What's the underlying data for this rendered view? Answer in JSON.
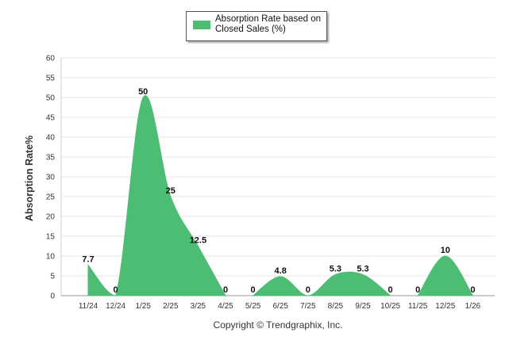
{
  "chart_data": {
    "type": "area",
    "title": "",
    "ylabel": "Absorption Rate%",
    "xlabel": "",
    "ylim": [
      0,
      60
    ],
    "ytick_step": 5,
    "grid": true,
    "legend_position": "top-center",
    "categories": [
      "11/24",
      "12/24",
      "1/25",
      "2/25",
      "3/25",
      "4/25",
      "5/25",
      "6/25",
      "7/25",
      "8/25",
      "9/25",
      "10/25",
      "11/25",
      "12/25",
      "1/26"
    ],
    "series": [
      {
        "name": "Absorption Rate based on Closed Sales (%)",
        "color": "#4dbd74",
        "values": [
          7.7,
          0,
          50,
          25,
          12.5,
          0,
          0,
          4.8,
          0,
          5.3,
          5.3,
          0,
          0,
          10,
          0
        ],
        "labels": [
          "7.7",
          "0",
          "50",
          "25",
          "12.5",
          "0",
          "0",
          "4.8",
          "0",
          "5.3",
          "5.3",
          "0",
          "0",
          "10",
          "0"
        ]
      }
    ]
  },
  "legend": {
    "label": "Absorption Rate based on Closed Sales (%)"
  },
  "copyright": "Copyright © Trendgraphix, Inc."
}
